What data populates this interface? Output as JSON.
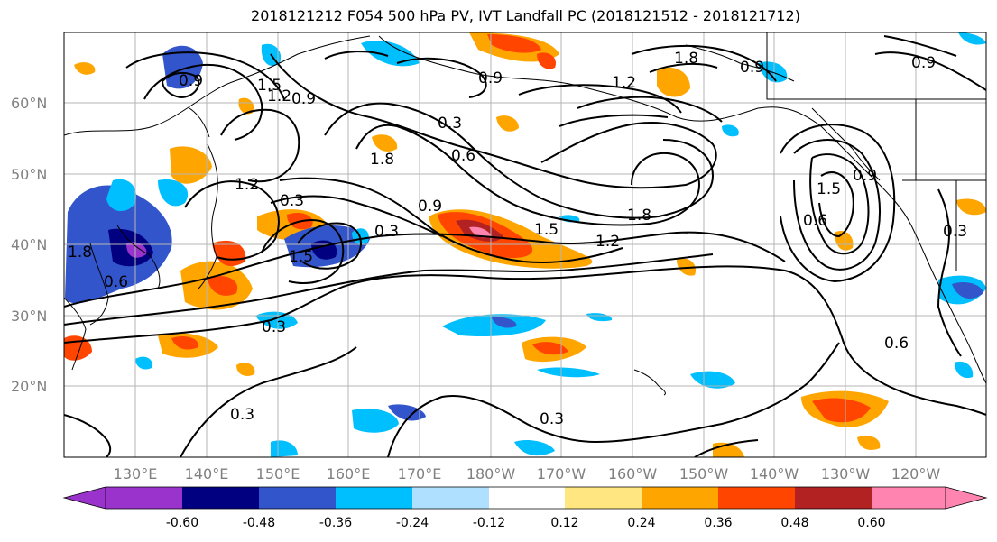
{
  "title": "2018121212 F054 500 hPa PV, IVT Landfall PC (2018121512 - 2018121712)",
  "map": {
    "lat_labels": [
      "60°N",
      "50°N",
      "40°N",
      "30°N",
      "20°N"
    ],
    "lon_labels": [
      "130°E",
      "140°E",
      "150°E",
      "160°E",
      "170°E",
      "180°W",
      "170°W",
      "160°W",
      "150°W",
      "140°W",
      "130°W",
      "120°W"
    ],
    "contour_labels": [
      "0.9",
      "1.5",
      "1.2",
      "0.9",
      "0.3",
      "0.6",
      "0.9",
      "1.8",
      "1.5",
      "1.2",
      "1.8",
      "0.3",
      "0.6",
      "0.3",
      "0.3",
      "0.9",
      "1.2",
      "0.6",
      "0.9",
      "1.8",
      "1.5",
      "0.9",
      "1.2",
      "0.3",
      "1.8",
      "0.6",
      "0.3",
      "1.5",
      "0.9",
      "0.3"
    ]
  },
  "colorbar": {
    "ticks": [
      "-0.60",
      "-0.48",
      "-0.36",
      "-0.24",
      "-0.12",
      "0.12",
      "0.24",
      "0.36",
      "0.48",
      "0.60"
    ],
    "colors": [
      "#9933cc",
      "#000080",
      "#3355cc",
      "#00bfff",
      "#b0e0ff",
      "#ffffff",
      "#ffe680",
      "#ffa500",
      "#ff4500",
      "#b22222",
      "#ff85b0"
    ]
  }
}
